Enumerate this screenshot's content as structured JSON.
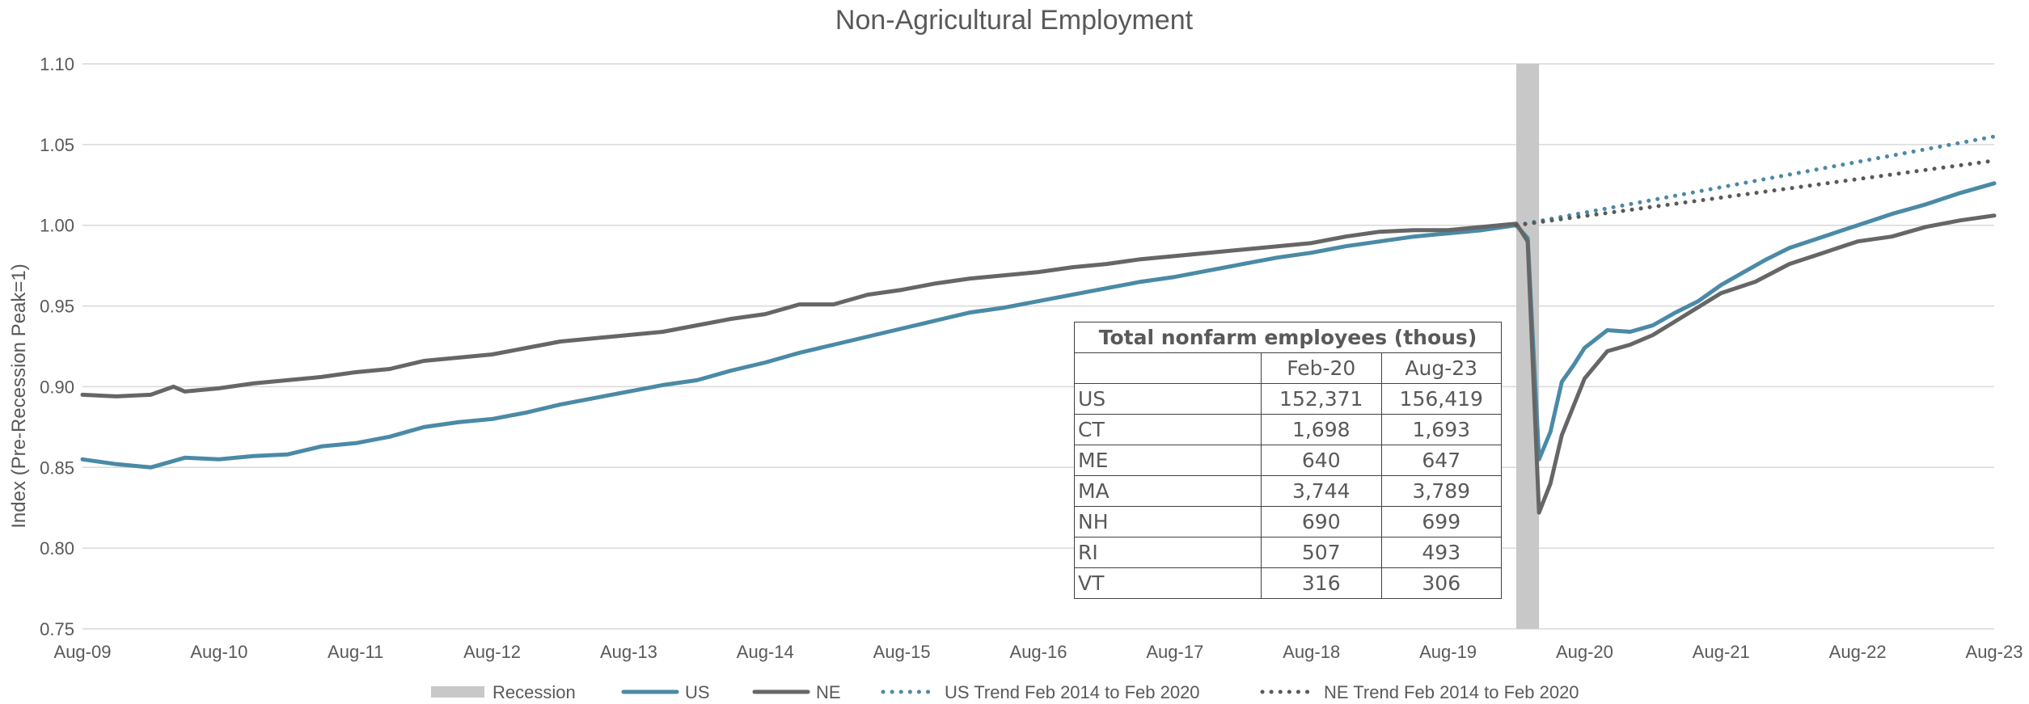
{
  "chart_data": {
    "type": "line",
    "title": "Non-Agricultural Employment",
    "xlabel": "",
    "ylabel": "Index (Pre-Recession Peak=1)",
    "ylim": [
      0.75,
      1.1
    ],
    "y_ticks": [
      "0.75",
      "0.80",
      "0.85",
      "0.90",
      "0.95",
      "1.00",
      "1.05",
      "1.10"
    ],
    "x_ticks": [
      "Aug-09",
      "Aug-10",
      "Aug-11",
      "Aug-12",
      "Aug-13",
      "Aug-14",
      "Aug-15",
      "Aug-16",
      "Aug-17",
      "Aug-18",
      "Aug-19",
      "Aug-20",
      "Aug-21",
      "Aug-22",
      "Aug-23"
    ],
    "x_range": [
      "2009-08",
      "2023-08"
    ],
    "grid": "horizontal",
    "legend_position": "bottom",
    "recession": {
      "name": "Recession",
      "start": "2020-02",
      "end": "2020-04",
      "color": "#c8c8c8"
    },
    "series": [
      {
        "name": "US",
        "color": "#4a8aa6",
        "style": "solid",
        "points": [
          [
            "2009-08",
            0.855
          ],
          [
            "2009-11",
            0.852
          ],
          [
            "2010-02",
            0.85
          ],
          [
            "2010-05",
            0.856
          ],
          [
            "2010-08",
            0.855
          ],
          [
            "2010-11",
            0.857
          ],
          [
            "2011-02",
            0.858
          ],
          [
            "2011-05",
            0.863
          ],
          [
            "2011-08",
            0.865
          ],
          [
            "2011-11",
            0.869
          ],
          [
            "2012-02",
            0.875
          ],
          [
            "2012-05",
            0.878
          ],
          [
            "2012-08",
            0.88
          ],
          [
            "2012-11",
            0.884
          ],
          [
            "2013-02",
            0.889
          ],
          [
            "2013-05",
            0.893
          ],
          [
            "2013-08",
            0.897
          ],
          [
            "2013-11",
            0.901
          ],
          [
            "2014-02",
            0.904
          ],
          [
            "2014-05",
            0.91
          ],
          [
            "2014-08",
            0.915
          ],
          [
            "2014-11",
            0.921
          ],
          [
            "2015-02",
            0.926
          ],
          [
            "2015-05",
            0.931
          ],
          [
            "2015-08",
            0.936
          ],
          [
            "2015-11",
            0.941
          ],
          [
            "2016-02",
            0.946
          ],
          [
            "2016-05",
            0.949
          ],
          [
            "2016-08",
            0.953
          ],
          [
            "2016-11",
            0.957
          ],
          [
            "2017-02",
            0.961
          ],
          [
            "2017-05",
            0.965
          ],
          [
            "2017-08",
            0.968
          ],
          [
            "2017-11",
            0.972
          ],
          [
            "2018-02",
            0.976
          ],
          [
            "2018-05",
            0.98
          ],
          [
            "2018-08",
            0.983
          ],
          [
            "2018-11",
            0.987
          ],
          [
            "2019-02",
            0.99
          ],
          [
            "2019-05",
            0.993
          ],
          [
            "2019-08",
            0.995
          ],
          [
            "2019-11",
            0.997
          ],
          [
            "2020-02",
            1.0
          ],
          [
            "2020-03",
            0.992
          ],
          [
            "2020-04",
            0.855
          ],
          [
            "2020-05",
            0.872
          ],
          [
            "2020-06",
            0.903
          ],
          [
            "2020-07",
            0.913
          ],
          [
            "2020-08",
            0.924
          ],
          [
            "2020-10",
            0.935
          ],
          [
            "2020-12",
            0.934
          ],
          [
            "2021-02",
            0.938
          ],
          [
            "2021-04",
            0.946
          ],
          [
            "2021-06",
            0.953
          ],
          [
            "2021-08",
            0.963
          ],
          [
            "2021-10",
            0.971
          ],
          [
            "2021-12",
            0.979
          ],
          [
            "2022-02",
            0.986
          ],
          [
            "2022-05",
            0.993
          ],
          [
            "2022-08",
            1.0
          ],
          [
            "2022-11",
            1.007
          ],
          [
            "2023-02",
            1.013
          ],
          [
            "2023-05",
            1.02
          ],
          [
            "2023-08",
            1.026
          ]
        ]
      },
      {
        "name": "NE",
        "color": "#666666",
        "style": "solid",
        "points": [
          [
            "2009-08",
            0.895
          ],
          [
            "2009-11",
            0.894
          ],
          [
            "2010-02",
            0.895
          ],
          [
            "2010-04",
            0.9
          ],
          [
            "2010-05",
            0.897
          ],
          [
            "2010-08",
            0.899
          ],
          [
            "2010-11",
            0.902
          ],
          [
            "2011-02",
            0.904
          ],
          [
            "2011-05",
            0.906
          ],
          [
            "2011-08",
            0.909
          ],
          [
            "2011-11",
            0.911
          ],
          [
            "2012-02",
            0.916
          ],
          [
            "2012-05",
            0.918
          ],
          [
            "2012-08",
            0.92
          ],
          [
            "2012-11",
            0.924
          ],
          [
            "2013-02",
            0.928
          ],
          [
            "2013-05",
            0.93
          ],
          [
            "2013-08",
            0.932
          ],
          [
            "2013-11",
            0.934
          ],
          [
            "2014-02",
            0.938
          ],
          [
            "2014-05",
            0.942
          ],
          [
            "2014-08",
            0.945
          ],
          [
            "2014-11",
            0.951
          ],
          [
            "2015-02",
            0.951
          ],
          [
            "2015-05",
            0.957
          ],
          [
            "2015-08",
            0.96
          ],
          [
            "2015-11",
            0.964
          ],
          [
            "2016-02",
            0.967
          ],
          [
            "2016-05",
            0.969
          ],
          [
            "2016-08",
            0.971
          ],
          [
            "2016-11",
            0.974
          ],
          [
            "2017-02",
            0.976
          ],
          [
            "2017-05",
            0.979
          ],
          [
            "2017-08",
            0.981
          ],
          [
            "2017-11",
            0.983
          ],
          [
            "2018-02",
            0.985
          ],
          [
            "2018-05",
            0.987
          ],
          [
            "2018-08",
            0.989
          ],
          [
            "2018-11",
            0.993
          ],
          [
            "2019-02",
            0.996
          ],
          [
            "2019-05",
            0.997
          ],
          [
            "2019-08",
            0.997
          ],
          [
            "2019-11",
            0.999
          ],
          [
            "2020-02",
            1.001
          ],
          [
            "2020-03",
            0.99
          ],
          [
            "2020-04",
            0.822
          ],
          [
            "2020-05",
            0.84
          ],
          [
            "2020-06",
            0.87
          ],
          [
            "2020-08",
            0.905
          ],
          [
            "2020-10",
            0.922
          ],
          [
            "2020-12",
            0.926
          ],
          [
            "2021-02",
            0.932
          ],
          [
            "2021-05",
            0.945
          ],
          [
            "2021-08",
            0.958
          ],
          [
            "2021-11",
            0.965
          ],
          [
            "2022-02",
            0.976
          ],
          [
            "2022-05",
            0.983
          ],
          [
            "2022-08",
            0.99
          ],
          [
            "2022-11",
            0.993
          ],
          [
            "2023-02",
            0.999
          ],
          [
            "2023-05",
            1.003
          ],
          [
            "2023-08",
            1.006
          ]
        ]
      },
      {
        "name": "US Trend Feb 2014 to Feb 2020",
        "color": "#4a8aa6",
        "style": "dotted",
        "points": [
          [
            "2020-02",
            1.0
          ],
          [
            "2023-08",
            1.055
          ]
        ]
      },
      {
        "name": "NE Trend Feb 2014 to Feb 2020",
        "color": "#595959",
        "style": "dotted",
        "points": [
          [
            "2020-02",
            1.0
          ],
          [
            "2023-08",
            1.04
          ]
        ]
      }
    ]
  },
  "table": {
    "caption": "Total nonfarm employees (thous)",
    "columns": [
      "",
      "Feb-20",
      "Aug-23"
    ],
    "rows": [
      [
        "US",
        "152,371",
        "156,419"
      ],
      [
        "CT",
        "1,698",
        "1,693"
      ],
      [
        "ME",
        "640",
        "647"
      ],
      [
        "MA",
        "3,744",
        "3,789"
      ],
      [
        "NH",
        "690",
        "699"
      ],
      [
        "RI",
        "507",
        "493"
      ],
      [
        "VT",
        "316",
        "306"
      ]
    ]
  }
}
